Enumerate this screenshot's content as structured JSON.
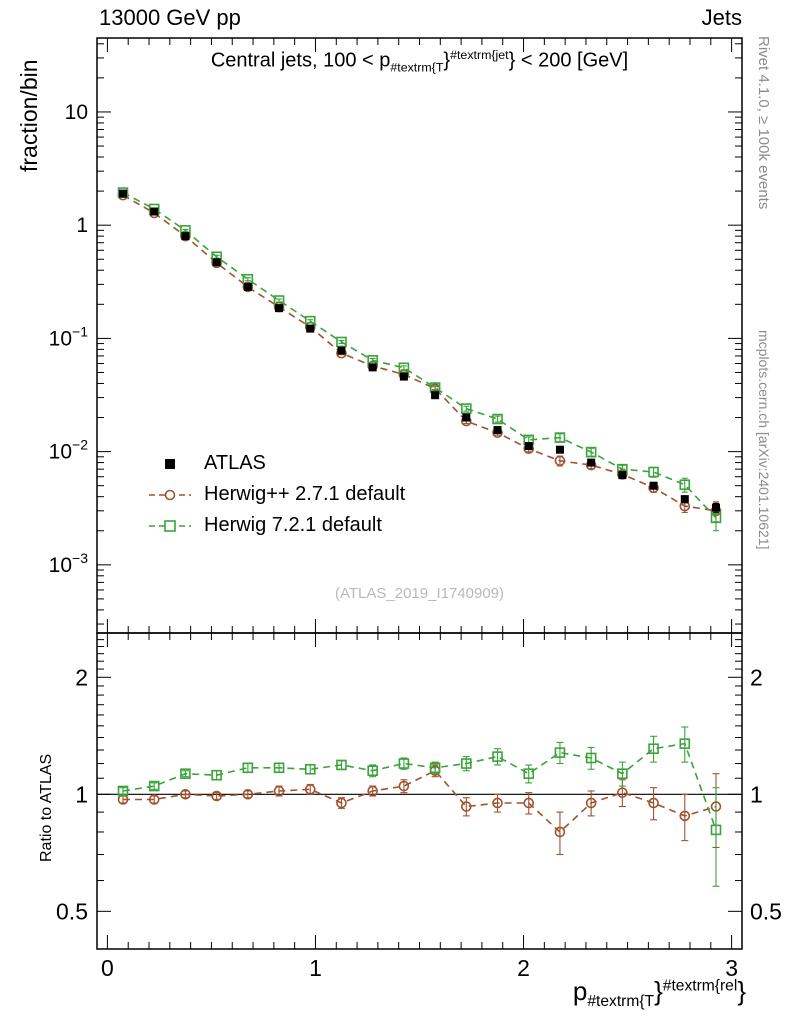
{
  "header": {
    "left": "13000 GeV pp",
    "right": "Jets"
  },
  "side_notes": {
    "top": "Rivet 4.1.0, ≥ 100k events",
    "bottom": "mcplots.cern.ch [arXiv:2401.10621]"
  },
  "watermark": "(ATLAS_2019_I1740909)",
  "main_panel": {
    "ylabel": "fraction/bin",
    "title": {
      "pre": "Central jets, 100 < p",
      "sub": "#textrm{T",
      "mid": "}",
      "sup": "#textrm{jet",
      "post": "} < 200 [GeV]"
    }
  },
  "ratio_panel": {
    "ylabel": "Ratio to ATLAS"
  },
  "x_axis": {
    "label": {
      "pre": "p",
      "sub": "#textrm{T",
      "mid": "}",
      "sup": "#textrm{rel",
      "post": "}"
    },
    "tick_labels": [
      "0",
      "1",
      "2",
      "3"
    ]
  },
  "legend": [
    {
      "label": "ATLAS",
      "marker": "filled-square",
      "color": "#000000",
      "line": "none"
    },
    {
      "label": "Herwig++ 2.7.1 default",
      "marker": "open-circle",
      "color": "#a0522d",
      "line": "dashed"
    },
    {
      "label": "Herwig 7.2.1 default",
      "marker": "open-square",
      "color": "#3aa33a",
      "line": "dashed"
    }
  ],
  "chart_data": [
    {
      "type": "line",
      "panel": "spectrum",
      "title": "Central jets, 100 < p_#textrm{T}^#textrm{jet} < 200 [GeV]",
      "xlabel": "p_#textrm{T}^#textrm{rel}",
      "ylabel": "fraction/bin",
      "x_range": [
        0,
        3
      ],
      "y_scale": "log",
      "y_range": [
        0.00025,
        45
      ],
      "grid": false,
      "y_tick_values": [
        10,
        1,
        0.1,
        0.01,
        0.001
      ],
      "y_tick_labels": [
        {
          "base": "10"
        },
        {
          "base": "1"
        },
        {
          "base": "10",
          "exp": "−1"
        },
        {
          "base": "10",
          "exp": "−2"
        },
        {
          "base": "10",
          "exp": "−3"
        }
      ],
      "x": [
        0.075,
        0.225,
        0.375,
        0.525,
        0.675,
        0.825,
        0.975,
        1.125,
        1.275,
        1.425,
        1.575,
        1.725,
        1.875,
        2.025,
        2.175,
        2.325,
        2.475,
        2.625,
        2.775,
        2.925
      ],
      "series": [
        {
          "name": "ATLAS",
          "values": [
            1.9,
            1.32,
            0.8,
            0.47,
            0.285,
            0.185,
            0.122,
            0.078,
            0.0555,
            0.046,
            0.0315,
            0.02,
            0.0155,
            0.0112,
            0.0104,
            0.008,
            0.0062,
            0.005,
            0.0038,
            0.0032
          ],
          "rel_err": [
            0.01,
            0.01,
            0.01,
            0.01,
            0.012,
            0.015,
            0.015,
            0.018,
            0.02,
            0.02,
            0.025,
            0.03,
            0.03,
            0.035,
            0.04,
            0.045,
            0.05,
            0.06,
            0.07,
            0.09
          ]
        },
        {
          "name": "Herwig++ 2.7.1 default",
          "values": [
            1.84,
            1.28,
            0.8,
            0.465,
            0.285,
            0.189,
            0.126,
            0.074,
            0.057,
            0.048,
            0.036,
            0.0186,
            0.0147,
            0.0106,
            0.0083,
            0.0076,
            0.0063,
            0.0048,
            0.0033,
            0.003
          ],
          "rel_err": [
            0.02,
            0.02,
            0.02,
            0.02,
            0.02,
            0.03,
            0.03,
            0.03,
            0.03,
            0.04,
            0.04,
            0.05,
            0.05,
            0.06,
            0.1,
            0.07,
            0.08,
            0.09,
            0.12,
            0.2
          ]
        },
        {
          "name": "Herwig 7.2.1 default",
          "values": [
            1.94,
            1.39,
            0.9,
            0.526,
            0.333,
            0.216,
            0.142,
            0.093,
            0.064,
            0.055,
            0.0368,
            0.024,
            0.0194,
            0.0127,
            0.0133,
            0.0099,
            0.007,
            0.0066,
            0.0051,
            0.0026
          ],
          "rel_err": [
            0.02,
            0.02,
            0.02,
            0.03,
            0.03,
            0.03,
            0.03,
            0.03,
            0.04,
            0.04,
            0.04,
            0.05,
            0.06,
            0.06,
            0.08,
            0.08,
            0.08,
            0.1,
            0.14,
            0.23
          ]
        }
      ]
    },
    {
      "type": "line",
      "panel": "ratio",
      "ylabel": "Ratio to ATLAS",
      "y_scale": "log",
      "y_range": [
        0.4,
        2.6
      ],
      "reference_line": 1,
      "y_tick_values": [
        2,
        1,
        0.5
      ],
      "y_tick_labels": [
        "2",
        "1",
        "0.5"
      ],
      "x": [
        0.075,
        0.225,
        0.375,
        0.525,
        0.675,
        0.825,
        0.975,
        1.125,
        1.275,
        1.425,
        1.575,
        1.725,
        1.875,
        2.025,
        2.175,
        2.325,
        2.475,
        2.625,
        2.775,
        2.925
      ],
      "series": [
        {
          "name": "Herwig++ 2.7.1 default",
          "values": [
            0.97,
            0.97,
            1.0,
            0.99,
            1.0,
            1.02,
            1.03,
            0.95,
            1.02,
            1.05,
            1.15,
            0.93,
            0.95,
            0.95,
            0.8,
            0.95,
            1.01,
            0.95,
            0.88,
            0.93
          ],
          "errors": [
            0.02,
            0.02,
            0.02,
            0.02,
            0.02,
            0.03,
            0.03,
            0.03,
            0.03,
            0.04,
            0.04,
            0.05,
            0.05,
            0.06,
            0.1,
            0.07,
            0.08,
            0.09,
            0.12,
            0.2
          ]
        },
        {
          "name": "Herwig 7.2.1 default",
          "values": [
            1.02,
            1.05,
            1.13,
            1.12,
            1.17,
            1.17,
            1.16,
            1.19,
            1.15,
            1.2,
            1.17,
            1.2,
            1.25,
            1.13,
            1.28,
            1.24,
            1.13,
            1.31,
            1.35,
            0.81
          ],
          "errors": [
            0.02,
            0.02,
            0.02,
            0.03,
            0.03,
            0.03,
            0.03,
            0.03,
            0.04,
            0.04,
            0.04,
            0.05,
            0.06,
            0.06,
            0.08,
            0.08,
            0.08,
            0.1,
            0.14,
            0.23
          ]
        }
      ]
    }
  ]
}
